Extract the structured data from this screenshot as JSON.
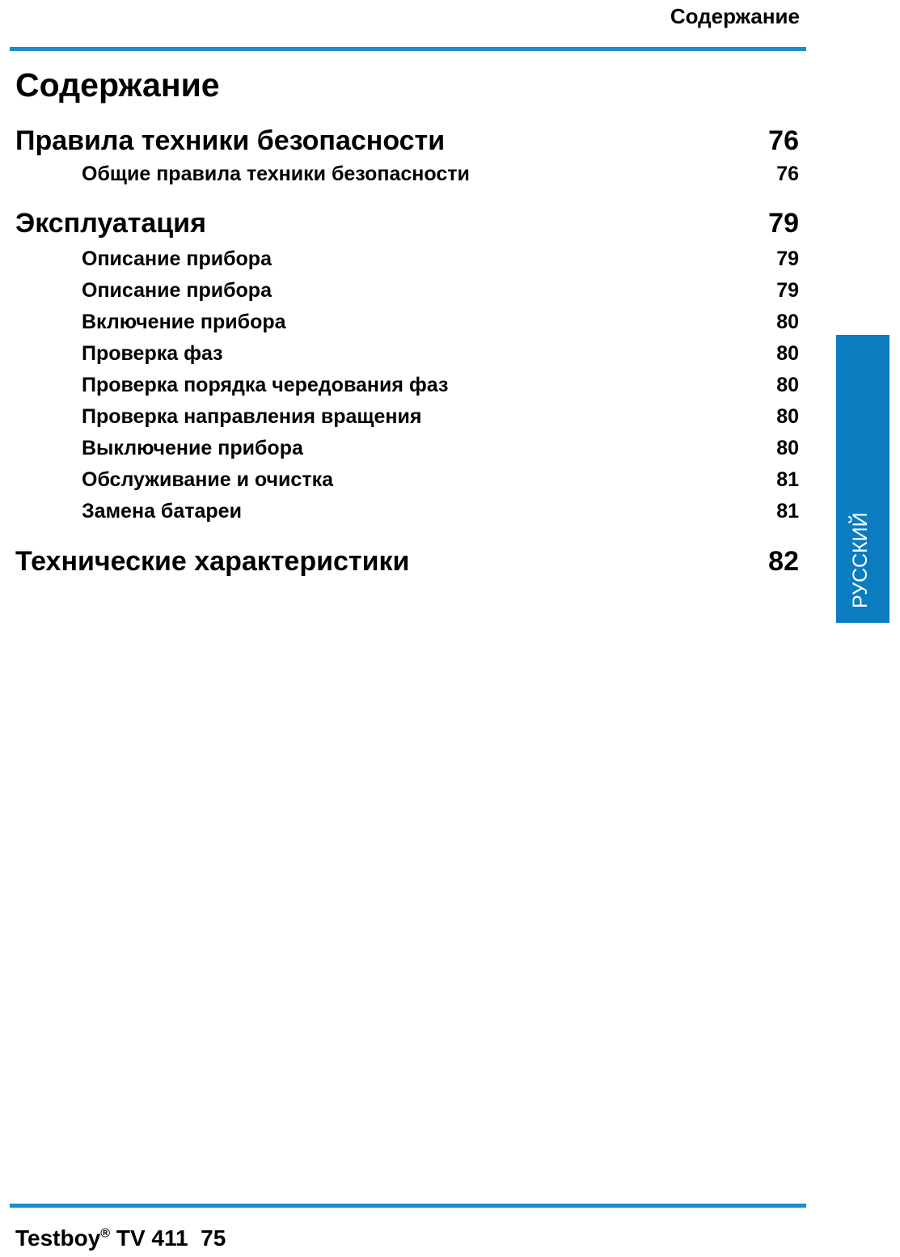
{
  "header": {
    "running_title": "Содержание"
  },
  "page_title": "Содержание",
  "toc": [
    {
      "title": "Правила техники безопасности",
      "page": "76",
      "items": [
        {
          "title": "Общие правила техники безопасности",
          "page": "76"
        }
      ]
    },
    {
      "title": "Эксплуатация",
      "page": "79",
      "items": [
        {
          "title": "Описание прибора",
          "page": "79"
        },
        {
          "title": "Описание прибора",
          "page": "79"
        },
        {
          "title": "Включение прибора",
          "page": "80"
        },
        {
          "title": "Проверка фаз",
          "page": "80"
        },
        {
          "title": "Проверка порядка чередования фаз",
          "page": "80"
        },
        {
          "title": "Проверка направления вращения",
          "page": "80"
        },
        {
          "title": "Выключение прибора",
          "page": "80"
        },
        {
          "title": "Обслуживание и очистка",
          "page": "81"
        },
        {
          "title": "Замена батареи",
          "page": "81"
        }
      ]
    },
    {
      "title": "Технические характеристики",
      "page": "82",
      "items": []
    }
  ],
  "side_tab": {
    "label": "РУССКИЙ",
    "color": "#0b7cc0"
  },
  "footer": {
    "brand": "Testboy",
    "registered": "®",
    "model": "TV 411",
    "page_number": "75"
  },
  "colors": {
    "rule": "#1a8dcc"
  }
}
